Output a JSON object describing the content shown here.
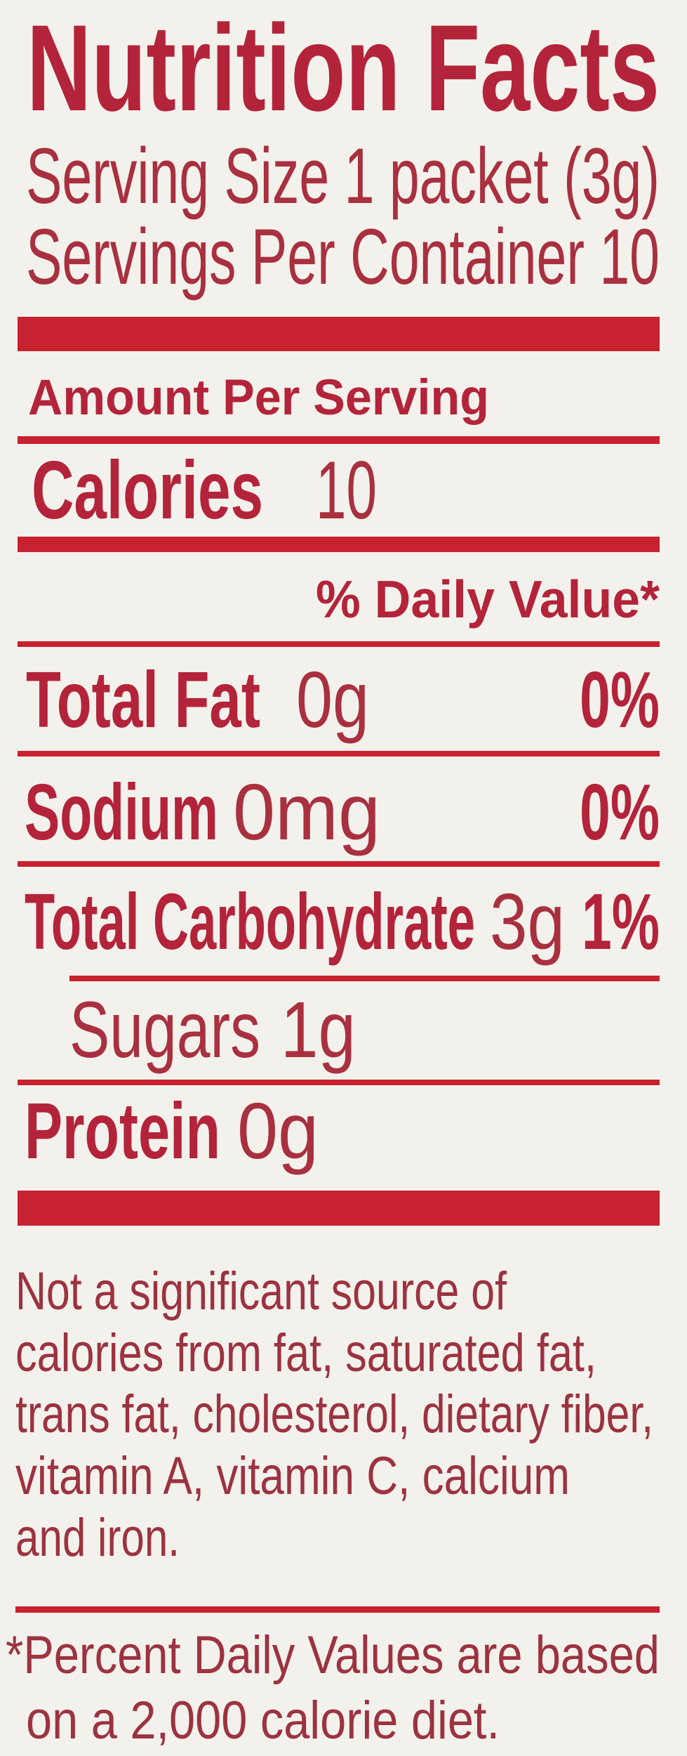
{
  "label": {
    "title": "Nutrition Facts",
    "serving_size": "Serving Size 1 packet (3g)",
    "servings_per_container": "Servings Per Container 10",
    "amount_per_serving": "Amount Per Serving",
    "calories": {
      "label": "Calories",
      "value": "10"
    },
    "daily_value_header": "% Daily Value*",
    "nutrients": [
      {
        "name": "Total Fat",
        "amount": "0g",
        "dv": "0%"
      },
      {
        "name": "Sodium",
        "amount": "0mg",
        "dv": "0%"
      },
      {
        "name": "Total Carbohydrate",
        "amount": "3g",
        "dv": "1%"
      },
      {
        "name": "Sugars",
        "amount": "1g"
      },
      {
        "name": "Protein",
        "amount": "0g"
      }
    ],
    "not_significant_lines": [
      "Not a significant source of",
      "calories from fat, saturated fat,",
      "trans fat, cholesterol, dietary fiber,",
      "vitamin A, vitamin C, calcium",
      "and iron."
    ],
    "footnote_lines": [
      "*Percent Daily Values are based",
      "on a 2,000 calorie diet."
    ]
  },
  "colors": {
    "accent": "#c8212f",
    "text": "#b3243a",
    "background": "#f3f1ec"
  }
}
